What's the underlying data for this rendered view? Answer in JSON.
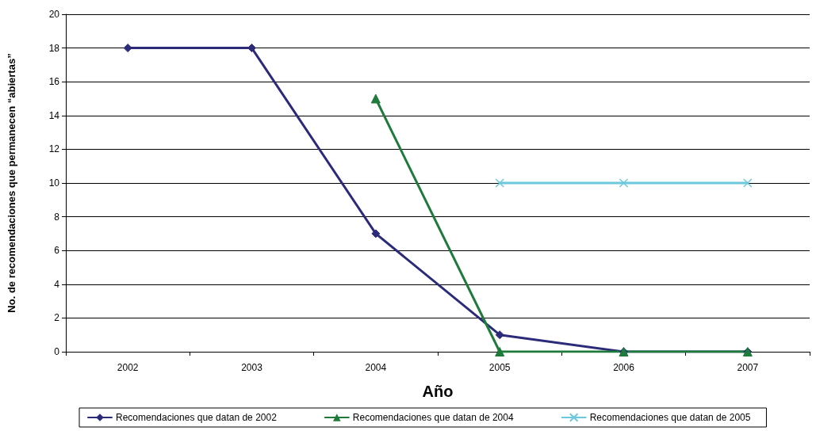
{
  "chart_data": {
    "type": "line",
    "xlabel": "Año",
    "ylabel": "No. de recomendaciones que permanecen “abiertas”",
    "categories": [
      "2002",
      "2003",
      "2004",
      "2005",
      "2006",
      "2007"
    ],
    "series": [
      {
        "name": "Recomendaciones que datan de 2002",
        "color": "#2b2b7a",
        "marker": "diamond",
        "values": [
          18,
          18,
          7,
          1,
          0,
          0
        ]
      },
      {
        "name": "Recomendaciones que datan de 2004",
        "color": "#1e7b3c",
        "marker": "triangle",
        "values": [
          null,
          null,
          15,
          0,
          0,
          0
        ]
      },
      {
        "name": "Recomendaciones que datan de 2005",
        "color": "#6cc8dc",
        "marker": "cross",
        "values": [
          null,
          null,
          null,
          10,
          10,
          10
        ]
      }
    ],
    "ylim": [
      0,
      20
    ],
    "yticks": [
      0,
      2,
      4,
      6,
      8,
      10,
      12,
      14,
      16,
      18,
      20
    ],
    "grid": "y",
    "legend": "bottom",
    "line_style": "solid"
  }
}
